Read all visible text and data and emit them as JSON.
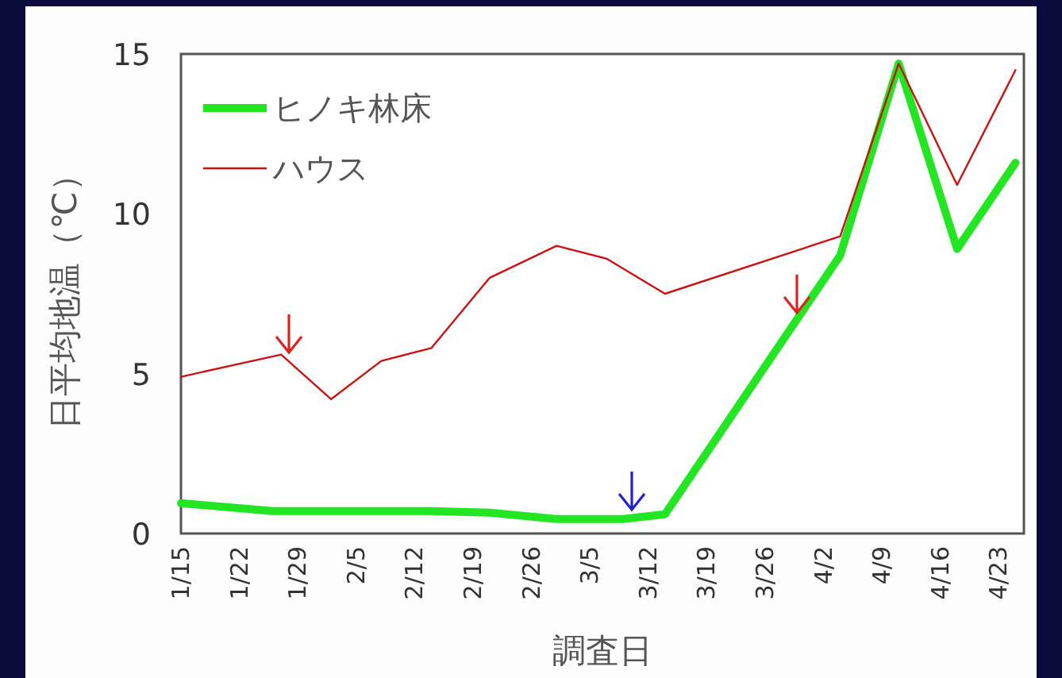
{
  "chart_data": {
    "type": "line",
    "xlabel": "調査日",
    "ylabel": "日平均地温（℃）",
    "xlim": [
      "--01-15",
      "--04-26"
    ],
    "ylim": [
      0,
      15
    ],
    "yticks": [
      0,
      5,
      10,
      15
    ],
    "xticks": [
      {
        "value": "--01-15",
        "label": "1/15"
      },
      {
        "value": "--01-22",
        "label": "1/22"
      },
      {
        "value": "--01-29",
        "label": "1/29"
      },
      {
        "value": "--02-05",
        "label": "2/5"
      },
      {
        "value": "--02-12",
        "label": "2/12"
      },
      {
        "value": "--02-19",
        "label": "2/19"
      },
      {
        "value": "--02-26",
        "label": "2/26"
      },
      {
        "value": "--03-05",
        "label": "3/5"
      },
      {
        "value": "--03-12",
        "label": "3/12"
      },
      {
        "value": "--03-19",
        "label": "3/19"
      },
      {
        "value": "--03-26",
        "label": "3/26"
      },
      {
        "value": "--04-02",
        "label": "4/2"
      },
      {
        "value": "--04-09",
        "label": "4/9"
      },
      {
        "value": "--04-16",
        "label": "4/16"
      },
      {
        "value": "--04-23",
        "label": "4/23"
      }
    ],
    "grid": false,
    "legend": "top left",
    "marker": "none",
    "line_style": "solid",
    "series": [
      {
        "name": "ヒノキ林床",
        "color": "#22e622",
        "x": [
          "--01-15",
          "--01-26",
          "--02-14",
          "--02-21",
          "--03-01",
          "--03-09",
          "--03-14",
          "--04-04",
          "--04-11",
          "--04-18",
          "--04-25"
        ],
        "values": [
          0.95,
          0.7,
          0.7,
          0.65,
          0.45,
          0.45,
          0.6,
          8.7,
          14.7,
          8.9,
          11.6
        ]
      },
      {
        "name": "ハウス",
        "color": "#cc1111",
        "x": [
          "--01-15",
          "--01-27",
          "--02-02",
          "--02-08",
          "--02-14",
          "--02-21",
          "--03-01",
          "--03-07",
          "--03-14",
          "--04-04",
          "--04-11",
          "--04-18",
          "--04-25"
        ],
        "values": [
          4.9,
          5.6,
          4.2,
          5.4,
          5.8,
          8.0,
          9.0,
          8.6,
          7.5,
          9.3,
          14.7,
          10.9,
          14.5
        ]
      }
    ]
  }
}
